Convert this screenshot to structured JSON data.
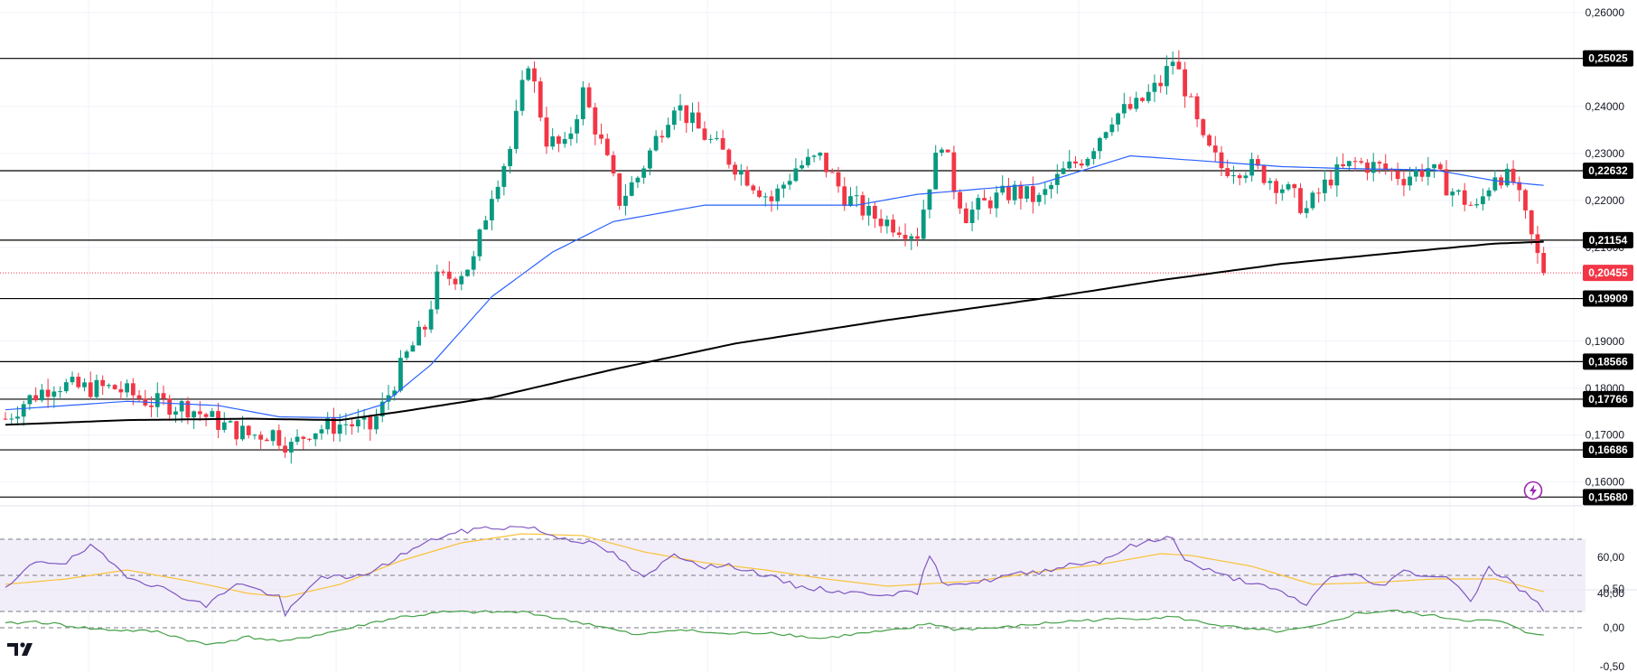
{
  "colors": {
    "up": "#089981",
    "down": "#f23645",
    "sma_fast": "#2962ff",
    "sma_slow": "#000000",
    "rsi": "#7e57c2",
    "rsi_ma": "#f9c23c",
    "oscillator": "#43a047",
    "level_line": "#000000",
    "current_price": "#f23645",
    "grid": "#f0f3fa",
    "rsi_band": "#ede7f6"
  },
  "icons": {
    "logo": "tradingview-logo-icon",
    "alert": "lightning-icon"
  },
  "chart_data": [
    {
      "type": "candlestick",
      "title": "",
      "ylim": [
        0.1568,
        0.26
      ],
      "y_ticks": [
        "0,26000",
        "0,24000",
        "0,23000",
        "0,22000",
        "0,21000",
        "0,19000",
        "0,18000",
        "0,17000",
        "0,16000"
      ],
      "y_tick_values": [
        0.26,
        0.24,
        0.23,
        0.22,
        0.21,
        0.19,
        0.18,
        0.17,
        0.16
      ],
      "levels": [
        {
          "label": "0,25025",
          "value": 0.25025
        },
        {
          "label": "0,22632",
          "value": 0.22632
        },
        {
          "label": "0,21154",
          "value": 0.21154
        },
        {
          "label": "0,19909",
          "value": 0.19909
        },
        {
          "label": "0,18566",
          "value": 0.18566
        },
        {
          "label": "0,17766",
          "value": 0.17766
        },
        {
          "label": "0,16686",
          "value": 0.16686
        },
        {
          "label": "0,15680",
          "value": 0.1568
        }
      ],
      "current_price": {
        "label": "0,20455",
        "value": 0.20455
      },
      "moving_averages": [
        {
          "role": "fast",
          "color": "#2962ff",
          "anchors": [
            [
              0,
              0.1754
            ],
            [
              20,
              0.1772
            ],
            [
              35,
              0.1763
            ],
            [
              45,
              0.1739
            ],
            [
              55,
              0.1737
            ],
            [
              62,
              0.1765
            ],
            [
              70,
              0.185
            ],
            [
              80,
              0.1995
            ],
            [
              90,
              0.209
            ],
            [
              100,
              0.2155
            ],
            [
              115,
              0.219
            ],
            [
              140,
              0.219
            ],
            [
              150,
              0.2213
            ],
            [
              170,
              0.2235
            ],
            [
              185,
              0.2295
            ],
            [
              196,
              0.2285
            ],
            [
              210,
              0.2272
            ],
            [
              220,
              0.2268
            ],
            [
              235,
              0.2265
            ],
            [
              245,
              0.2242
            ],
            [
              253,
              0.2232
            ]
          ]
        },
        {
          "role": "slow",
          "color": "#000000",
          "anchors": [
            [
              0,
              0.1722
            ],
            [
              20,
              0.1732
            ],
            [
              40,
              0.1735
            ],
            [
              55,
              0.1732
            ],
            [
              65,
              0.175
            ],
            [
              80,
              0.178
            ],
            [
              100,
              0.184
            ],
            [
              120,
              0.1895
            ],
            [
              145,
              0.1945
            ],
            [
              170,
              0.199
            ],
            [
              190,
              0.203
            ],
            [
              210,
              0.2065
            ],
            [
              230,
              0.209
            ],
            [
              245,
              0.2108
            ],
            [
              253,
              0.2112
            ]
          ]
        }
      ],
      "ohlc_anchors": [
        [
          0,
          0.1735
        ],
        [
          3,
          0.177
        ],
        [
          8,
          0.181
        ],
        [
          12,
          0.18
        ],
        [
          18,
          0.18
        ],
        [
          24,
          0.177
        ],
        [
          30,
          0.176
        ],
        [
          36,
          0.172
        ],
        [
          40,
          0.17
        ],
        [
          44,
          0.1705
        ],
        [
          47,
          0.1675
        ],
        [
          50,
          0.171
        ],
        [
          56,
          0.1725
        ],
        [
          60,
          0.1715
        ],
        [
          62,
          0.176
        ],
        [
          66,
          0.187
        ],
        [
          69,
          0.193
        ],
        [
          71,
          0.203
        ],
        [
          74,
          0.204
        ],
        [
          77,
          0.207
        ],
        [
          80,
          0.222
        ],
        [
          83,
          0.231
        ],
        [
          86,
          0.25
        ],
        [
          89,
          0.233
        ],
        [
          92,
          0.231
        ],
        [
          95,
          0.243
        ],
        [
          98,
          0.232
        ],
        [
          101,
          0.22
        ],
        [
          104,
          0.225
        ],
        [
          107,
          0.233
        ],
        [
          110,
          0.241
        ],
        [
          114,
          0.235
        ],
        [
          118,
          0.23
        ],
        [
          122,
          0.225
        ],
        [
          126,
          0.22
        ],
        [
          130,
          0.227
        ],
        [
          134,
          0.229
        ],
        [
          138,
          0.221
        ],
        [
          142,
          0.217
        ],
        [
          146,
          0.215
        ],
        [
          150,
          0.213
        ],
        [
          152,
          0.224
        ],
        [
          154,
          0.233
        ],
        [
          156,
          0.223
        ],
        [
          158,
          0.217
        ],
        [
          162,
          0.22
        ],
        [
          166,
          0.222
        ],
        [
          170,
          0.22
        ],
        [
          174,
          0.226
        ],
        [
          178,
          0.23
        ],
        [
          182,
          0.238
        ],
        [
          186,
          0.24
        ],
        [
          190,
          0.245
        ],
        [
          192,
          0.25
        ],
        [
          194,
          0.244
        ],
        [
          197,
          0.232
        ],
        [
          200,
          0.227
        ],
        [
          205,
          0.227
        ],
        [
          210,
          0.223
        ],
        [
          214,
          0.218
        ],
        [
          218,
          0.225
        ],
        [
          222,
          0.228
        ],
        [
          226,
          0.227
        ],
        [
          230,
          0.225
        ],
        [
          234,
          0.227
        ],
        [
          238,
          0.222
        ],
        [
          242,
          0.218
        ],
        [
          245,
          0.226
        ],
        [
          248,
          0.224
        ],
        [
          250,
          0.216
        ],
        [
          252,
          0.208
        ],
        [
          253,
          0.2046
        ]
      ]
    },
    {
      "type": "line",
      "indicator": "rsi",
      "ylim": [
        25,
        78
      ],
      "y_ticks": [
        "60,00",
        "40,00"
      ],
      "y_tick_values": [
        60,
        40
      ],
      "band": [
        30,
        70
      ],
      "midline": 50,
      "series_anchors": [
        [
          0,
          42
        ],
        [
          5,
          58
        ],
        [
          10,
          57
        ],
        [
          14,
          66
        ],
        [
          20,
          50
        ],
        [
          28,
          40
        ],
        [
          33,
          33
        ],
        [
          38,
          46
        ],
        [
          45,
          38
        ],
        [
          46,
          28
        ],
        [
          52,
          50
        ],
        [
          57,
          48
        ],
        [
          62,
          55
        ],
        [
          66,
          63
        ],
        [
          72,
          72
        ],
        [
          78,
          76
        ],
        [
          86,
          77
        ],
        [
          90,
          72
        ],
        [
          96,
          68
        ],
        [
          100,
          62
        ],
        [
          105,
          48
        ],
        [
          110,
          62
        ],
        [
          115,
          55
        ],
        [
          120,
          55
        ],
        [
          125,
          50
        ],
        [
          130,
          44
        ],
        [
          135,
          42
        ],
        [
          140,
          40
        ],
        [
          145,
          40
        ],
        [
          150,
          40
        ],
        [
          152,
          62
        ],
        [
          154,
          46
        ],
        [
          160,
          46
        ],
        [
          165,
          50
        ],
        [
          170,
          52
        ],
        [
          175,
          56
        ],
        [
          180,
          58
        ],
        [
          185,
          66
        ],
        [
          190,
          70
        ],
        [
          192,
          72
        ],
        [
          194,
          58
        ],
        [
          197,
          54
        ],
        [
          200,
          50
        ],
        [
          205,
          46
        ],
        [
          210,
          40
        ],
        [
          214,
          34
        ],
        [
          218,
          50
        ],
        [
          222,
          50
        ],
        [
          226,
          44
        ],
        [
          230,
          52
        ],
        [
          234,
          50
        ],
        [
          238,
          48
        ],
        [
          241,
          36
        ],
        [
          244,
          54
        ],
        [
          247,
          48
        ],
        [
          250,
          40
        ],
        [
          253,
          31
        ]
      ],
      "ma_anchors": [
        [
          0,
          45
        ],
        [
          10,
          48
        ],
        [
          20,
          53
        ],
        [
          30,
          47
        ],
        [
          40,
          40
        ],
        [
          46,
          38
        ],
        [
          55,
          45
        ],
        [
          65,
          58
        ],
        [
          75,
          68
        ],
        [
          85,
          73
        ],
        [
          95,
          72
        ],
        [
          105,
          63
        ],
        [
          115,
          57
        ],
        [
          125,
          53
        ],
        [
          135,
          48
        ],
        [
          145,
          44
        ],
        [
          150,
          45
        ],
        [
          160,
          47
        ],
        [
          170,
          52
        ],
        [
          180,
          56
        ],
        [
          190,
          62
        ],
        [
          195,
          61
        ],
        [
          205,
          55
        ],
        [
          215,
          45
        ],
        [
          225,
          46
        ],
        [
          235,
          48
        ],
        [
          245,
          48
        ],
        [
          253,
          41
        ]
      ]
    },
    {
      "type": "line",
      "indicator": "momentum",
      "ylim": [
        -0.6,
        0.6
      ],
      "y_ticks": [
        "0,50",
        "0,00",
        "-0,50"
      ],
      "y_tick_values": [
        0.5,
        0.0,
        -0.5
      ],
      "zero_line": 0,
      "series_anchors": [
        [
          0,
          0.05
        ],
        [
          5,
          0.08
        ],
        [
          15,
          -0.02
        ],
        [
          25,
          -0.05
        ],
        [
          33,
          -0.22
        ],
        [
          40,
          -0.12
        ],
        [
          46,
          -0.18
        ],
        [
          52,
          -0.08
        ],
        [
          57,
          0.0
        ],
        [
          60,
          0.06
        ],
        [
          65,
          0.14
        ],
        [
          68,
          0.16
        ],
        [
          72,
          0.2
        ],
        [
          78,
          0.2
        ],
        [
          86,
          0.2
        ],
        [
          92,
          0.1
        ],
        [
          96,
          0.05
        ],
        [
          104,
          -0.1
        ],
        [
          110,
          -0.02
        ],
        [
          118,
          -0.08
        ],
        [
          126,
          -0.06
        ],
        [
          134,
          -0.14
        ],
        [
          140,
          -0.08
        ],
        [
          148,
          -0.02
        ],
        [
          152,
          0.06
        ],
        [
          156,
          -0.02
        ],
        [
          164,
          0.0
        ],
        [
          170,
          0.05
        ],
        [
          176,
          0.09
        ],
        [
          186,
          0.12
        ],
        [
          192,
          0.14
        ],
        [
          196,
          0.08
        ],
        [
          204,
          -0.02
        ],
        [
          210,
          -0.05
        ],
        [
          216,
          0.02
        ],
        [
          222,
          0.18
        ],
        [
          228,
          0.22
        ],
        [
          234,
          0.16
        ],
        [
          240,
          0.1
        ],
        [
          246,
          0.08
        ],
        [
          250,
          -0.06
        ],
        [
          253,
          -0.08
        ]
      ]
    }
  ]
}
